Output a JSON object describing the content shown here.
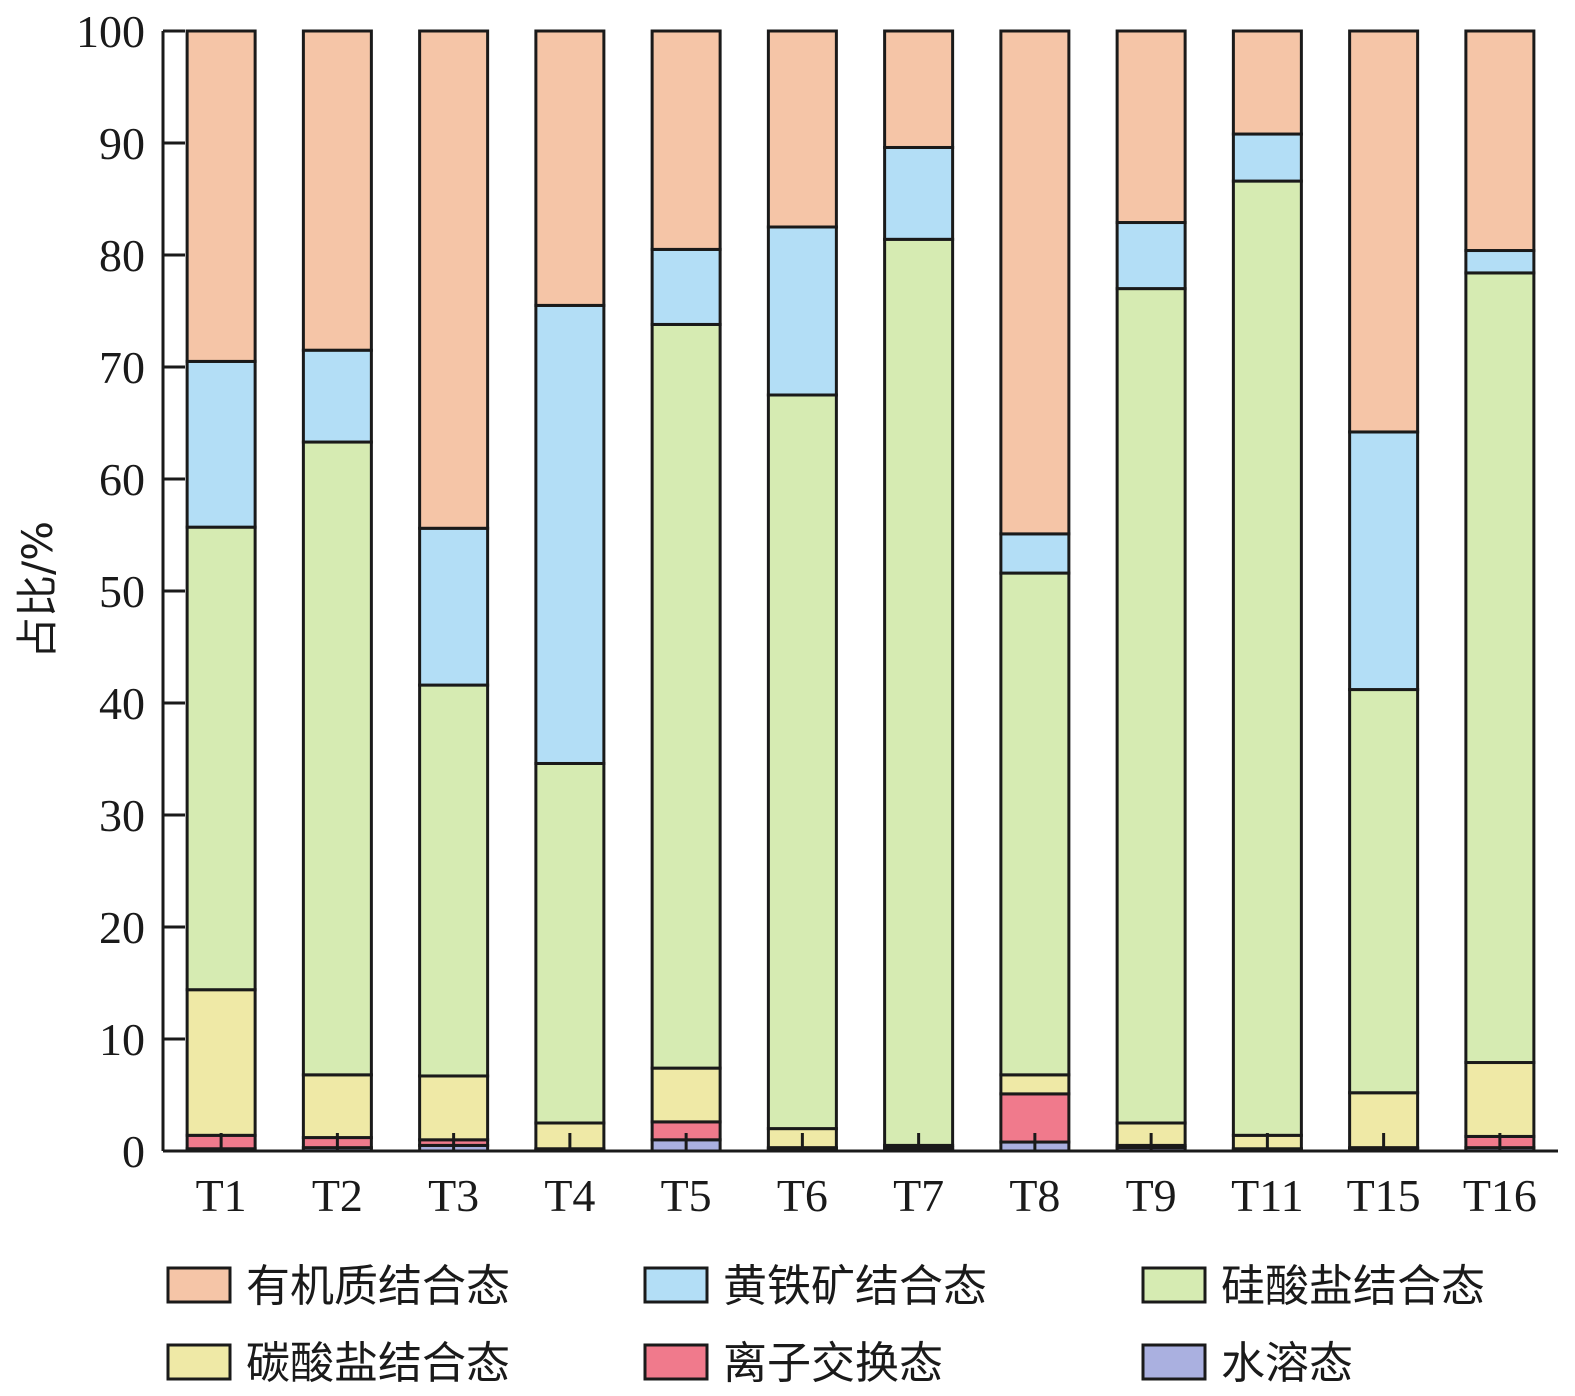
{
  "chart_data": {
    "type": "bar",
    "stacked": true,
    "title": "",
    "xlabel": "",
    "ylabel": "占比/%",
    "ylim": [
      0,
      100
    ],
    "yticks": [
      0,
      10,
      20,
      30,
      40,
      50,
      60,
      70,
      80,
      90,
      100
    ],
    "grid": false,
    "legend_position": "bottom",
    "categories": [
      "T1",
      "T2",
      "T3",
      "T4",
      "T5",
      "T6",
      "T7",
      "T8",
      "T9",
      "T11",
      "T15",
      "T16"
    ],
    "series": [
      {
        "name": "水溶态",
        "color": "#aab0e0",
        "values": [
          0.2,
          0.3,
          0.5,
          0.1,
          1.0,
          0.2,
          0.1,
          0.8,
          0.3,
          0.1,
          0.2,
          0.3
        ]
      },
      {
        "name": "离子交换态",
        "color": "#f07a8c",
        "values": [
          1.2,
          0.9,
          0.5,
          0.1,
          1.6,
          0.1,
          0.2,
          4.3,
          0.2,
          0.1,
          0.1,
          1.0
        ]
      },
      {
        "name": "碳酸盐结合态",
        "color": "#efe9a6",
        "values": [
          13.0,
          5.6,
          5.7,
          2.3,
          4.8,
          1.7,
          0.2,
          1.7,
          2.0,
          1.2,
          4.9,
          6.6
        ]
      },
      {
        "name": "硅酸盐结合态",
        "color": "#d6ebb2",
        "values": [
          41.3,
          56.5,
          34.9,
          32.1,
          66.4,
          65.5,
          80.9,
          44.8,
          74.5,
          85.2,
          36.0,
          70.5
        ]
      },
      {
        "name": "黄铁矿结合态",
        "color": "#b3def6",
        "values": [
          14.8,
          8.2,
          14.0,
          40.9,
          6.7,
          15.0,
          8.2,
          3.5,
          5.9,
          4.2,
          23.0,
          2.0
        ]
      },
      {
        "name": "有机质结合态",
        "color": "#f5c5a7",
        "values": [
          29.5,
          28.5,
          44.4,
          24.5,
          19.5,
          17.5,
          10.4,
          44.9,
          17.1,
          9.2,
          35.8,
          19.6
        ]
      }
    ],
    "legend_order": [
      "有机质结合态",
      "黄铁矿结合态",
      "硅酸盐结合态",
      "碳酸盐结合态",
      "离子交换态",
      "水溶态"
    ]
  }
}
